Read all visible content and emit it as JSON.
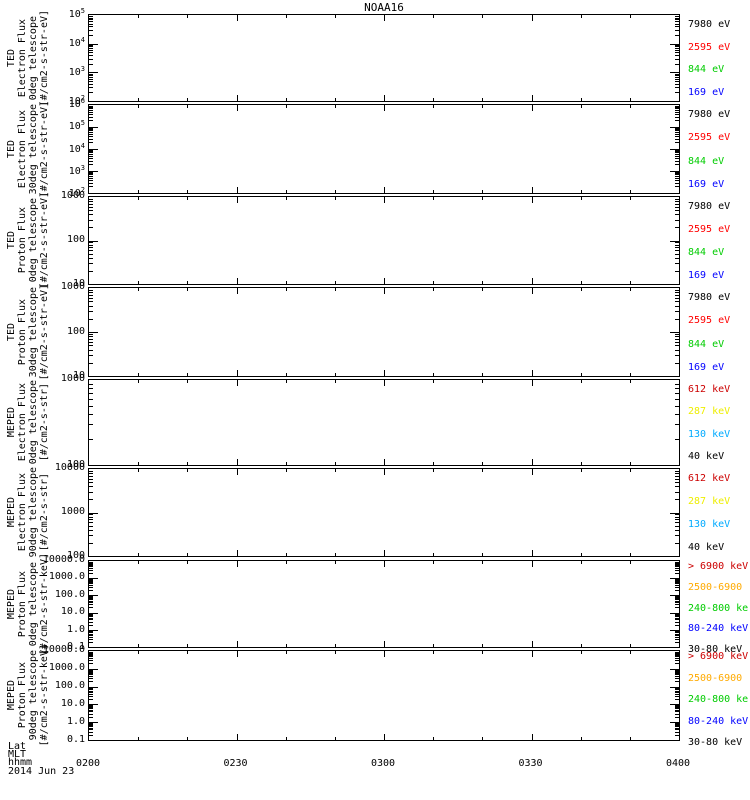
{
  "title": "NOAA16",
  "footer": {
    "lat": "Lat",
    "mlt": "MLT",
    "hhmm": "hhmm",
    "date": "2014 Jun 23"
  },
  "x_axis": {
    "tick_labels": [
      "0200",
      "0230",
      "0300",
      "0330",
      "0400"
    ],
    "minutes_span": 120,
    "minor_step_min": 10,
    "major_step_min": 30
  },
  "colors": {
    "black": "#000000",
    "red": "#ff0000",
    "green": "#00cc00",
    "blue": "#0000ff",
    "darkred": "#cc0000",
    "yellow": "#eeee00",
    "cyan": "#00aaff",
    "orange": "#ffaa00"
  },
  "panels": [
    {
      "id": "ted-electron-0deg",
      "label_lines": [
        "TED",
        "Electron Flux",
        "0deg telescope",
        "[#/cm2-s-str-eV]"
      ],
      "y_tick_labels": [
        "10^5",
        "10^4",
        "10^3",
        "10^2"
      ],
      "decades": 3,
      "legend": [
        {
          "text": "7980 eV",
          "color": "black"
        },
        {
          "text": "2595 eV",
          "color": "red"
        },
        {
          "text": "844 eV",
          "color": "green"
        },
        {
          "text": "169 eV",
          "color": "blue"
        }
      ]
    },
    {
      "id": "ted-electron-30deg",
      "label_lines": [
        "TED",
        "Electron Flux",
        "30deg telescope",
        "[#/cm2-s-str-eV]"
      ],
      "y_tick_labels": [
        "10^6",
        "10^5",
        "10^4",
        "10^3",
        "10^2"
      ],
      "decades": 4,
      "legend": [
        {
          "text": "7980 eV",
          "color": "black"
        },
        {
          "text": "2595 eV",
          "color": "red"
        },
        {
          "text": "844 eV",
          "color": "green"
        },
        {
          "text": "169 eV",
          "color": "blue"
        }
      ]
    },
    {
      "id": "ted-proton-0deg",
      "label_lines": [
        "TED",
        "Proton Flux",
        "0deg telescope",
        "[#/cm2-s-str-eV]"
      ],
      "y_tick_labels": [
        "1000",
        "100",
        "10"
      ],
      "decades": 2,
      "legend": [
        {
          "text": "7980 eV",
          "color": "black"
        },
        {
          "text": "2595 eV",
          "color": "red"
        },
        {
          "text": "844 eV",
          "color": "green"
        },
        {
          "text": "169 eV",
          "color": "blue"
        }
      ]
    },
    {
      "id": "ted-proton-30deg",
      "label_lines": [
        "TED",
        "Proton Flux",
        "30deg telescope",
        "[#/cm2-s-str-eV]"
      ],
      "y_tick_labels": [
        "1000",
        "100",
        "10"
      ],
      "decades": 2,
      "legend": [
        {
          "text": "7980 eV",
          "color": "black"
        },
        {
          "text": "2595 eV",
          "color": "red"
        },
        {
          "text": "844 eV",
          "color": "green"
        },
        {
          "text": "169 eV",
          "color": "blue"
        }
      ]
    },
    {
      "id": "meped-electron-0deg",
      "label_lines": [
        "MEPED",
        "Electron Flux",
        "0deg telescope",
        "[#/cm2-s-str]"
      ],
      "y_tick_labels": [
        "1000",
        "100"
      ],
      "decades": 1,
      "legend": [
        {
          "text": "612 keV",
          "color": "darkred"
        },
        {
          "text": "287 keV",
          "color": "yellow"
        },
        {
          "text": "130 keV",
          "color": "cyan"
        },
        {
          "text": "40 keV",
          "color": "black"
        }
      ]
    },
    {
      "id": "meped-electron-90deg",
      "label_lines": [
        "MEPED",
        "Electron Flux",
        "90deg telescope",
        "[#/cm2-s-str]"
      ],
      "y_tick_labels": [
        "10000",
        "1000",
        "100"
      ],
      "decades": 2,
      "legend": [
        {
          "text": "612 keV",
          "color": "darkred"
        },
        {
          "text": "287 keV",
          "color": "yellow"
        },
        {
          "text": "130 keV",
          "color": "cyan"
        },
        {
          "text": "40 keV",
          "color": "black"
        }
      ]
    },
    {
      "id": "meped-proton-0deg",
      "label_lines": [
        "MEPED",
        "Proton Flux",
        "0deg telescope",
        "[#/cm2-s-str-keV]"
      ],
      "y_tick_labels": [
        "10000.0",
        "1000.0",
        "100.0",
        "10.0",
        "1.0",
        "0.1"
      ],
      "decades": 5,
      "legend": [
        {
          "text": "> 6900 keV",
          "color": "darkred"
        },
        {
          "text": "2500-6900",
          "color": "orange"
        },
        {
          "text": "240-800 ke",
          "color": "green"
        },
        {
          "text": "80-240 keV",
          "color": "blue"
        },
        {
          "text": "30-80 keV",
          "color": "black"
        }
      ]
    },
    {
      "id": "meped-proton-90deg",
      "label_lines": [
        "MEPED",
        "Proton Flux",
        "90deg telescope",
        "[#/cm2-s-str-keV]"
      ],
      "y_tick_labels": [
        "10000.0",
        "1000.0",
        "100.0",
        "10.0",
        "1.0",
        "0.1"
      ],
      "decades": 5,
      "legend": [
        {
          "text": "> 6900 keV",
          "color": "darkred"
        },
        {
          "text": "2500-6900",
          "color": "orange"
        },
        {
          "text": "240-800 ke",
          "color": "green"
        },
        {
          "text": "80-240 keV",
          "color": "blue"
        },
        {
          "text": "30-80 keV",
          "color": "black"
        }
      ]
    }
  ],
  "chart_data": [
    {
      "type": "line",
      "title": "NOAA16",
      "subtitle": "TED Electron Flux 0deg telescope",
      "ylabel": "[#/cm2-s-str-eV]",
      "yscale": "log",
      "ylim": [
        100,
        100000
      ],
      "x_ticks": [
        "0200",
        "0230",
        "0300",
        "0330",
        "0400"
      ],
      "xlabel": "hhmm, 2014 Jun 23",
      "grid": false,
      "legend_position": "right",
      "series": [
        {
          "name": "7980 eV",
          "color": "#000000",
          "x": [],
          "y": []
        },
        {
          "name": "2595 eV",
          "color": "#ff0000",
          "x": [],
          "y": []
        },
        {
          "name": "844 eV",
          "color": "#00cc00",
          "x": [],
          "y": []
        },
        {
          "name": "169 eV",
          "color": "#0000ff",
          "x": [],
          "y": []
        }
      ]
    },
    {
      "type": "line",
      "title": "NOAA16",
      "subtitle": "TED Electron Flux 30deg telescope",
      "ylabel": "[#/cm2-s-str-eV]",
      "yscale": "log",
      "ylim": [
        100,
        1000000
      ],
      "x_ticks": [
        "0200",
        "0230",
        "0300",
        "0330",
        "0400"
      ],
      "xlabel": "hhmm, 2014 Jun 23",
      "grid": false,
      "legend_position": "right",
      "series": [
        {
          "name": "7980 eV",
          "color": "#000000",
          "x": [],
          "y": []
        },
        {
          "name": "2595 eV",
          "color": "#ff0000",
          "x": [],
          "y": []
        },
        {
          "name": "844 eV",
          "color": "#00cc00",
          "x": [],
          "y": []
        },
        {
          "name": "169 eV",
          "color": "#0000ff",
          "x": [],
          "y": []
        }
      ]
    },
    {
      "type": "line",
      "title": "NOAA16",
      "subtitle": "TED Proton Flux 0deg telescope",
      "ylabel": "[#/cm2-s-str-eV]",
      "yscale": "log",
      "ylim": [
        10,
        1000
      ],
      "x_ticks": [
        "0200",
        "0230",
        "0300",
        "0330",
        "0400"
      ],
      "xlabel": "hhmm, 2014 Jun 23",
      "grid": false,
      "legend_position": "right",
      "series": [
        {
          "name": "7980 eV",
          "color": "#000000",
          "x": [],
          "y": []
        },
        {
          "name": "2595 eV",
          "color": "#ff0000",
          "x": [],
          "y": []
        },
        {
          "name": "844 eV",
          "color": "#00cc00",
          "x": [],
          "y": []
        },
        {
          "name": "169 eV",
          "color": "#0000ff",
          "x": [],
          "y": []
        }
      ]
    },
    {
      "type": "line",
      "title": "NOAA16",
      "subtitle": "TED Proton Flux 30deg telescope",
      "ylabel": "[#/cm2-s-str-eV]",
      "yscale": "log",
      "ylim": [
        10,
        1000
      ],
      "x_ticks": [
        "0200",
        "0230",
        "0300",
        "0330",
        "0400"
      ],
      "xlabel": "hhmm, 2014 Jun 23",
      "grid": false,
      "legend_position": "right",
      "series": [
        {
          "name": "7980 eV",
          "color": "#000000",
          "x": [],
          "y": []
        },
        {
          "name": "2595 eV",
          "color": "#ff0000",
          "x": [],
          "y": []
        },
        {
          "name": "844 eV",
          "color": "#00cc00",
          "x": [],
          "y": []
        },
        {
          "name": "169 eV",
          "color": "#0000ff",
          "x": [],
          "y": []
        }
      ]
    },
    {
      "type": "line",
      "title": "NOAA16",
      "subtitle": "MEPED Electron Flux 0deg telescope",
      "ylabel": "[#/cm2-s-str]",
      "yscale": "log",
      "ylim": [
        100,
        1000
      ],
      "x_ticks": [
        "0200",
        "0230",
        "0300",
        "0330",
        "0400"
      ],
      "xlabel": "hhmm, 2014 Jun 23",
      "grid": false,
      "legend_position": "right",
      "series": [
        {
          "name": "612 keV",
          "color": "#cc0000",
          "x": [],
          "y": []
        },
        {
          "name": "287 keV",
          "color": "#eeee00",
          "x": [],
          "y": []
        },
        {
          "name": "130 keV",
          "color": "#00aaff",
          "x": [],
          "y": []
        },
        {
          "name": "40 keV",
          "color": "#000000",
          "x": [],
          "y": []
        }
      ]
    },
    {
      "type": "line",
      "title": "NOAA16",
      "subtitle": "MEPED Electron Flux 90deg telescope",
      "ylabel": "[#/cm2-s-str]",
      "yscale": "log",
      "ylim": [
        100,
        10000
      ],
      "x_ticks": [
        "0200",
        "0230",
        "0300",
        "0330",
        "0400"
      ],
      "xlabel": "hhmm, 2014 Jun 23",
      "grid": false,
      "legend_position": "right",
      "series": [
        {
          "name": "612 keV",
          "color": "#cc0000",
          "x": [],
          "y": []
        },
        {
          "name": "287 keV",
          "color": "#eeee00",
          "x": [],
          "y": []
        },
        {
          "name": "130 keV",
          "color": "#00aaff",
          "x": [],
          "y": []
        },
        {
          "name": "40 keV",
          "color": "#000000",
          "x": [],
          "y": []
        }
      ]
    },
    {
      "type": "line",
      "title": "NOAA16",
      "subtitle": "MEPED Proton Flux 0deg telescope",
      "ylabel": "[#/cm2-s-str-keV]",
      "yscale": "log",
      "ylim": [
        0.1,
        10000
      ],
      "x_ticks": [
        "0200",
        "0230",
        "0300",
        "0330",
        "0400"
      ],
      "xlabel": "hhmm, 2014 Jun 23",
      "grid": false,
      "legend_position": "right",
      "series": [
        {
          "name": "> 6900 keV",
          "color": "#cc0000",
          "x": [],
          "y": []
        },
        {
          "name": "2500-6900",
          "color": "#ffaa00",
          "x": [],
          "y": []
        },
        {
          "name": "240-800 ke",
          "color": "#00cc00",
          "x": [],
          "y": []
        },
        {
          "name": "80-240 keV",
          "color": "#0000ff",
          "x": [],
          "y": []
        },
        {
          "name": "30-80 keV",
          "color": "#000000",
          "x": [],
          "y": []
        }
      ]
    },
    {
      "type": "line",
      "title": "NOAA16",
      "subtitle": "MEPED Proton Flux 90deg telescope",
      "ylabel": "[#/cm2-s-str-keV]",
      "yscale": "log",
      "ylim": [
        0.1,
        10000
      ],
      "x_ticks": [
        "0200",
        "0230",
        "0300",
        "0330",
        "0400"
      ],
      "xlabel": "hhmm, 2014 Jun 23",
      "grid": false,
      "legend_position": "right",
      "series": [
        {
          "name": "> 6900 keV",
          "color": "#cc0000",
          "x": [],
          "y": []
        },
        {
          "name": "2500-6900",
          "color": "#ffaa00",
          "x": [],
          "y": []
        },
        {
          "name": "240-800 ke",
          "color": "#00cc00",
          "x": [],
          "y": []
        },
        {
          "name": "80-240 keV",
          "color": "#0000ff",
          "x": [],
          "y": []
        },
        {
          "name": "30-80 keV",
          "color": "#000000",
          "x": [],
          "y": []
        }
      ]
    }
  ]
}
